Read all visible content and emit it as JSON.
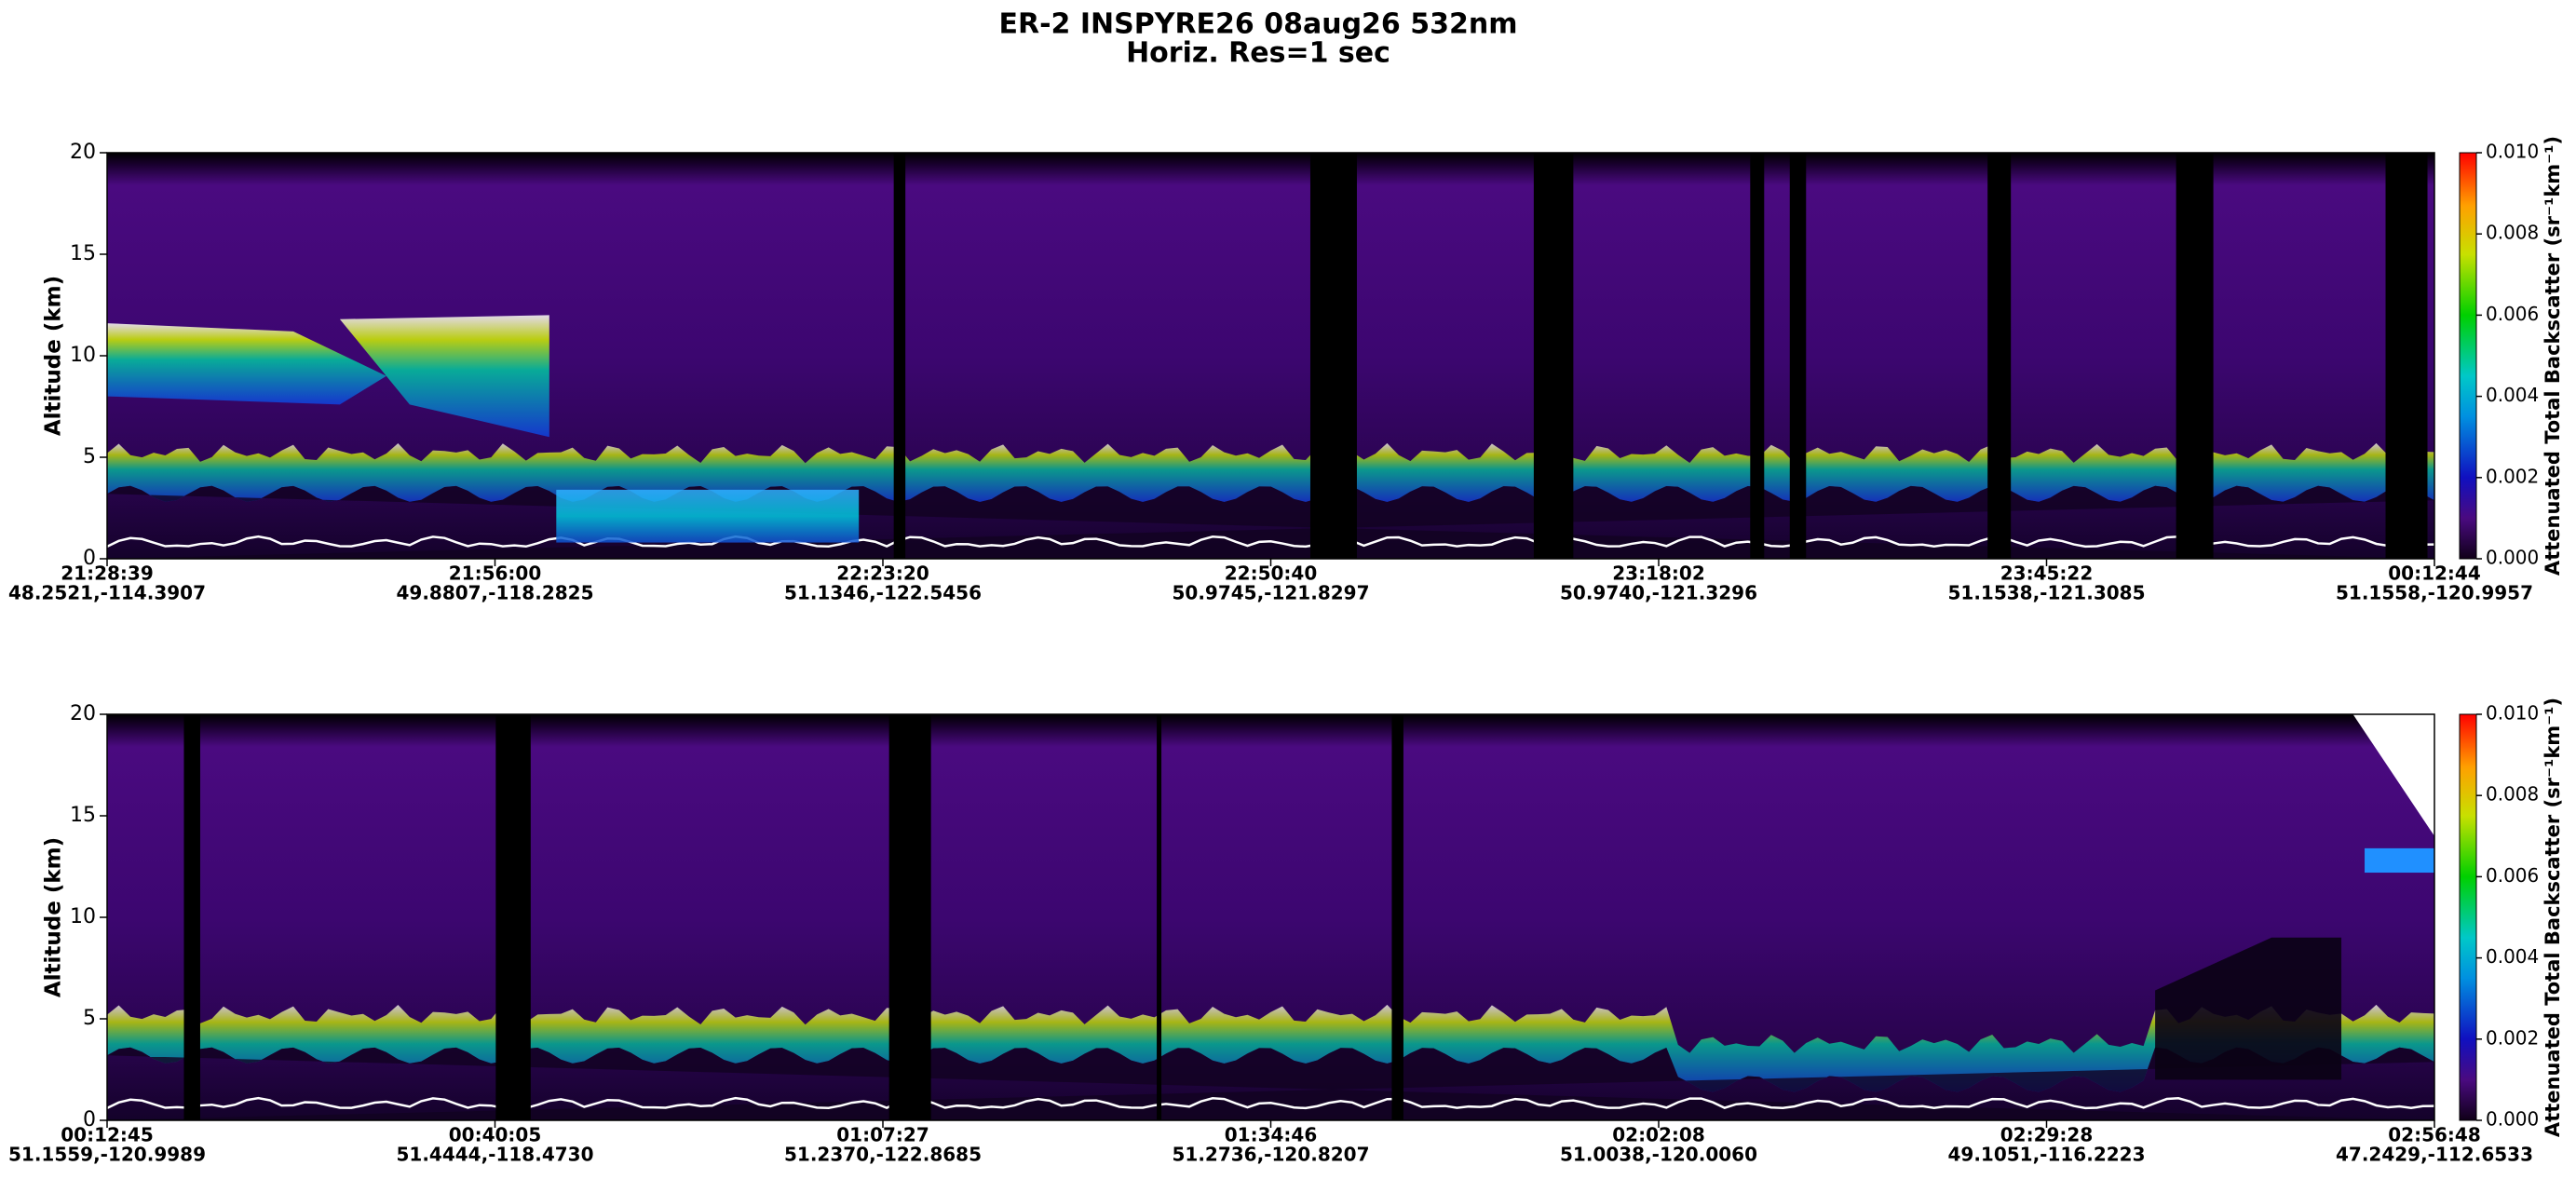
{
  "chart_data": [
    {
      "type": "curtain",
      "title": "ER-2  INSPYRE26  08aug26  532nm",
      "subtitle": "Horiz. Res=1 sec",
      "y_label": "Altitude (km)",
      "ylim": [
        0,
        20
      ],
      "yticks": [
        0,
        5,
        10,
        15,
        20
      ],
      "categories": [
        "21:28:39",
        "21:56:00",
        "22:23:20",
        "22:50:40",
        "23:18:02",
        "23:45:22",
        "00:12:44"
      ],
      "locations": [
        "48.2521,-114.3907",
        "49.8807,-118.2825",
        "51.1346,-122.5456",
        "50.9745,-121.8297",
        "50.9740,-121.3296",
        "51.1538,-121.3085",
        "51.1558,-120.9957"
      ],
      "colorbar": {
        "label": "Attenuated Total Backscatter (sr⁻¹km⁻¹)",
        "lim": [
          0,
          0.01
        ],
        "ticks": [
          {
            "value": 0,
            "label": "0.000"
          },
          {
            "value": 0.002,
            "label": "0.002"
          },
          {
            "value": 0.004,
            "label": "0.004"
          },
          {
            "value": 0.006,
            "label": "0.006"
          },
          {
            "value": 0.008,
            "label": "0.008"
          },
          {
            "value": 0.01,
            "label": "0.010"
          }
        ]
      }
    },
    {
      "type": "curtain",
      "y_label": "Altitude (km)",
      "ylim": [
        0,
        20
      ],
      "yticks": [
        0,
        5,
        10,
        15,
        20
      ],
      "categories": [
        "00:12:45",
        "00:40:05",
        "01:07:27",
        "01:34:46",
        "02:02:08",
        "02:29:28",
        "02:56:48"
      ],
      "locations": [
        "51.1559,-120.9989",
        "51.4444,-118.4730",
        "51.2370,-122.8685",
        "51.2736,-120.8207",
        "51.0038,-120.0060",
        "49.1051,-116.2223",
        "47.2429,-112.6533"
      ],
      "colorbar": {
        "label": "Attenuated Total Backscatter (sr⁻¹km⁻¹)",
        "lim": [
          0,
          0.01
        ],
        "ticks": [
          {
            "value": 0,
            "label": "0.000"
          },
          {
            "value": 0.002,
            "label": "0.002"
          },
          {
            "value": 0.004,
            "label": "0.004"
          },
          {
            "value": 0.006,
            "label": "0.006"
          },
          {
            "value": 0.008,
            "label": "0.008"
          },
          {
            "value": 0.01,
            "label": "0.010"
          }
        ]
      }
    }
  ]
}
